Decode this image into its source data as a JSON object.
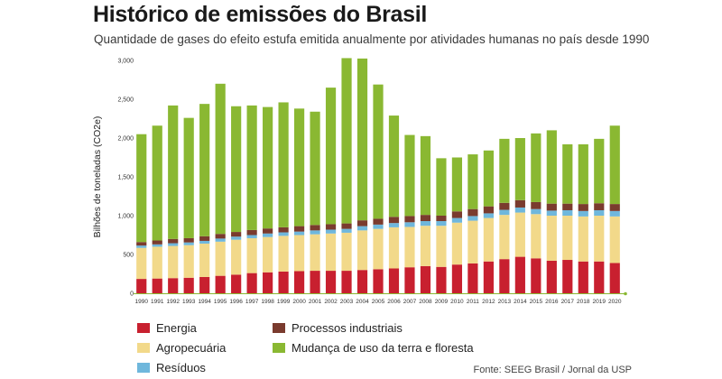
{
  "header": {
    "title": "Histórico de emissões do Brasil",
    "subtitle": "Quantidade de gases do efeito estufa emitida anualmente por atividades humanas no país desde 1990"
  },
  "source": "Fonte: SEEG Brasil / Jornal da USP",
  "chart_data": {
    "type": "bar",
    "stacked": true,
    "title": "Histórico de emissões do Brasil",
    "subtitle": "Quantidade de gases do efeito estufa emitida anualmente por atividades humanas no país desde 1990",
    "xlabel": "",
    "ylabel": "Bilhões de toneladas (CO2e)",
    "ylim": [
      0,
      3000
    ],
    "yticks": [
      0,
      500,
      1000,
      1500,
      2000,
      2500,
      3000
    ],
    "ytick_labels": [
      "0",
      "500",
      "1,000",
      "1,500",
      "2,000",
      "2,500",
      "3,000"
    ],
    "grid": false,
    "legend_placement": "bottom",
    "categories": [
      "1990",
      "1991",
      "1992",
      "1993",
      "1994",
      "1995",
      "1996",
      "1997",
      "1998",
      "1999",
      "2000",
      "2001",
      "2002",
      "2003",
      "2004",
      "2005",
      "2006",
      "2007",
      "2008",
      "2009",
      "2010",
      "2011",
      "2012",
      "2013",
      "2014",
      "2015",
      "2016",
      "2017",
      "2018",
      "2019",
      "2020"
    ],
    "series": [
      {
        "name": "Energia",
        "color": "#c8202f",
        "values": [
          185,
          190,
          195,
          200,
          210,
          225,
          240,
          260,
          270,
          280,
          285,
          290,
          290,
          290,
          300,
          310,
          320,
          335,
          350,
          340,
          370,
          385,
          410,
          440,
          470,
          450,
          420,
          430,
          410,
          410,
          390
        ]
      },
      {
        "name": "Agropecuária",
        "color": "#f2d98a",
        "values": [
          400,
          410,
          415,
          420,
          430,
          440,
          450,
          450,
          455,
          460,
          465,
          470,
          480,
          490,
          510,
          520,
          530,
          520,
          520,
          530,
          540,
          550,
          560,
          570,
          570,
          570,
          580,
          570,
          580,
          590,
          600
        ]
      },
      {
        "name": "Resíduos",
        "color": "#6fb7dc",
        "values": [
          30,
          30,
          35,
          35,
          35,
          40,
          40,
          40,
          45,
          45,
          45,
          50,
          50,
          50,
          55,
          55,
          55,
          60,
          60,
          60,
          60,
          60,
          60,
          65,
          65,
          65,
          65,
          70,
          70,
          70,
          70
        ]
      },
      {
        "name": "Processos industriais",
        "color": "#7a3b2e",
        "values": [
          45,
          50,
          55,
          55,
          60,
          60,
          60,
          65,
          65,
          65,
          70,
          70,
          70,
          70,
          75,
          75,
          80,
          80,
          80,
          70,
          85,
          90,
          90,
          90,
          95,
          90,
          90,
          85,
          90,
          90,
          90
        ]
      },
      {
        "name": "Mudança de uso da terra e floresta",
        "color": "#8ab832",
        "values": [
          1390,
          1480,
          1720,
          1550,
          1705,
          1935,
          1620,
          1605,
          1565,
          1610,
          1515,
          1460,
          1760,
          2130,
          2085,
          1730,
          1305,
          1045,
          1015,
          740,
          695,
          705,
          720,
          825,
          800,
          885,
          945,
          765,
          770,
          830,
          1010
        ]
      }
    ]
  }
}
